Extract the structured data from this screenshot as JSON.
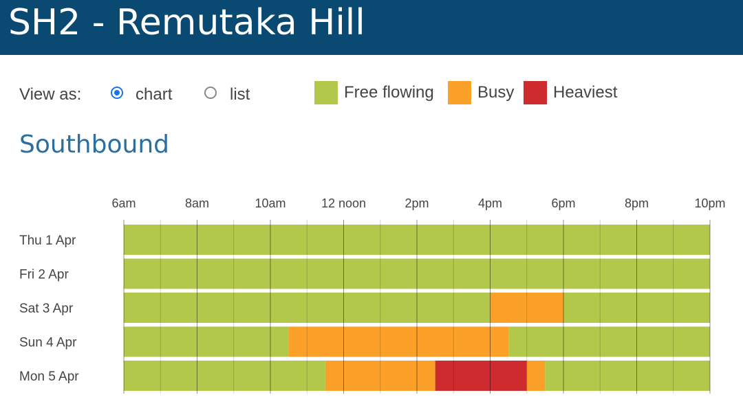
{
  "header": {
    "title": "SH2 - Remutaka Hill"
  },
  "view": {
    "label": "View as:",
    "options": [
      {
        "label": "chart",
        "selected": true
      },
      {
        "label": "list",
        "selected": false
      }
    ]
  },
  "legend": [
    {
      "label": "Free flowing",
      "color": "#b2c84a"
    },
    {
      "label": "Busy",
      "color": "#fba12a"
    },
    {
      "label": "Heaviest",
      "color": "#ce2b2f"
    }
  ],
  "section": {
    "title": "Southbound"
  },
  "chart_data": {
    "type": "heatmap",
    "title": "Southbound",
    "x_unit": "hour of day (24h)",
    "x_range": [
      6,
      22
    ],
    "ticks": [
      {
        "hour": 6,
        "label": "6am"
      },
      {
        "hour": 8,
        "label": "8am"
      },
      {
        "hour": 10,
        "label": "10am"
      },
      {
        "hour": 12,
        "label": "12 noon"
      },
      {
        "hour": 14,
        "label": "2pm"
      },
      {
        "hour": 16,
        "label": "4pm"
      },
      {
        "hour": 18,
        "label": "6pm"
      },
      {
        "hour": 20,
        "label": "8pm"
      },
      {
        "hour": 22,
        "label": "10pm"
      }
    ],
    "categories": {
      "free": "Free flowing",
      "busy": "Busy",
      "heaviest": "Heaviest"
    },
    "rows": [
      {
        "day": "Thu 1 Apr",
        "segments": [
          {
            "start": 6,
            "end": 22,
            "level": "free"
          }
        ]
      },
      {
        "day": "Fri 2 Apr",
        "segments": [
          {
            "start": 6,
            "end": 22,
            "level": "free"
          }
        ]
      },
      {
        "day": "Sat 3 Apr",
        "segments": [
          {
            "start": 6,
            "end": 16,
            "level": "free"
          },
          {
            "start": 16,
            "end": 18,
            "level": "busy"
          },
          {
            "start": 18,
            "end": 22,
            "level": "free"
          }
        ]
      },
      {
        "day": "Sun 4 Apr",
        "segments": [
          {
            "start": 6,
            "end": 10.5,
            "level": "free"
          },
          {
            "start": 10.5,
            "end": 16.5,
            "level": "busy"
          },
          {
            "start": 16.5,
            "end": 22,
            "level": "free"
          }
        ]
      },
      {
        "day": "Mon 5 Apr",
        "segments": [
          {
            "start": 6,
            "end": 11.5,
            "level": "free"
          },
          {
            "start": 11.5,
            "end": 14.5,
            "level": "busy"
          },
          {
            "start": 14.5,
            "end": 17,
            "level": "heaviest"
          },
          {
            "start": 17,
            "end": 17.5,
            "level": "busy"
          },
          {
            "start": 17.5,
            "end": 22,
            "level": "free"
          }
        ]
      }
    ]
  }
}
